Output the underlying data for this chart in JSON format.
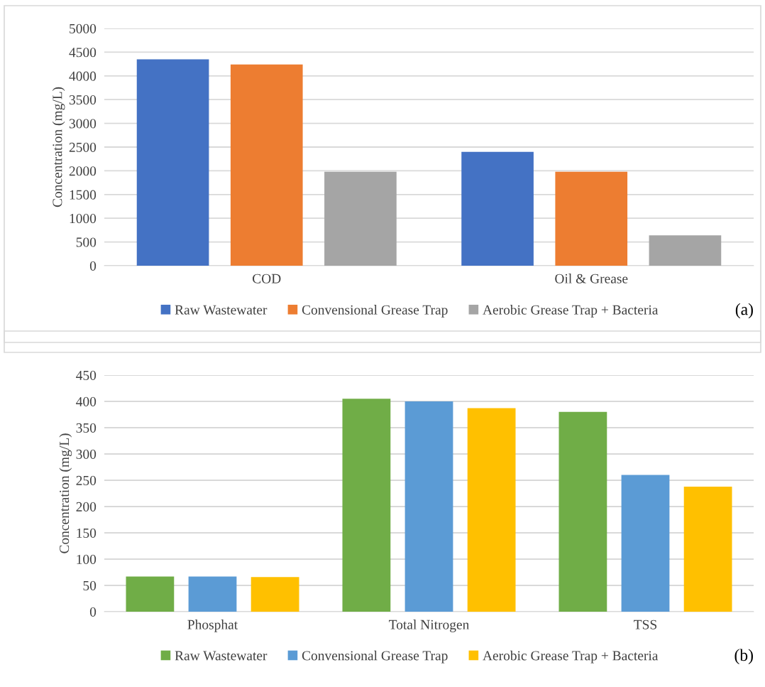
{
  "chart_data": [
    {
      "type": "bar",
      "categories": [
        "COD",
        "Oil & Grease"
      ],
      "ylabel": "Concentration (mg/L)",
      "ylim": [
        0,
        5000
      ],
      "yticks": [
        0,
        500,
        1000,
        1500,
        2000,
        2500,
        3000,
        3500,
        4000,
        4500,
        5000
      ],
      "grid": "y",
      "legend": "bottom",
      "annotations": [
        "(a)"
      ],
      "series": [
        {
          "name": "Raw Wastewater",
          "color": "#4472c4",
          "values": [
            4350,
            2400
          ]
        },
        {
          "name": "Convensional Grease Trap",
          "color": "#ed7d31",
          "values": [
            4240,
            1980
          ]
        },
        {
          "name": "Aerobic Grease Trap + Bacteria",
          "color": "#a5a5a5",
          "values": [
            1980,
            640
          ]
        }
      ]
    },
    {
      "type": "bar",
      "categories": [
        "Phosphat",
        "Total Nitrogen",
        "TSS"
      ],
      "ylabel": "Concentration (mg/L)",
      "ylim": [
        0,
        450
      ],
      "yticks": [
        0,
        50,
        100,
        150,
        200,
        250,
        300,
        350,
        400,
        450
      ],
      "grid": "y",
      "legend": "bottom",
      "annotations": [
        "(b)"
      ],
      "series": [
        {
          "name": "Raw Wastewater",
          "color": "#70ad47",
          "values": [
            67,
            405,
            380
          ]
        },
        {
          "name": "Convensional Grease Trap",
          "color": "#5b9bd5",
          "values": [
            67,
            400,
            260
          ]
        },
        {
          "name": "Aerobic Grease Trap + Bacteria",
          "color": "#ffc000",
          "values": [
            66,
            387,
            238
          ]
        }
      ]
    }
  ]
}
